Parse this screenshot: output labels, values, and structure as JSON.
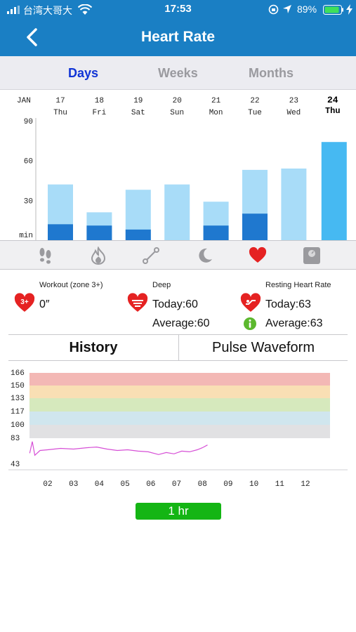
{
  "status_bar": {
    "carrier": "台湾大哥大",
    "time": "17:53",
    "battery": "89%"
  },
  "nav": {
    "title": "Heart Rate"
  },
  "tabs": [
    {
      "label": "Days",
      "active": true
    },
    {
      "label": "Weeks",
      "active": false
    },
    {
      "label": "Months",
      "active": false
    }
  ],
  "chart_data": {
    "type": "bar",
    "month_label": "JAN",
    "categories": [
      {
        "day": "17",
        "weekday": "Thu"
      },
      {
        "day": "18",
        "weekday": "Fri"
      },
      {
        "day": "19",
        "weekday": "Sat"
      },
      {
        "day": "20",
        "weekday": "Sun"
      },
      {
        "day": "21",
        "weekday": "Mon"
      },
      {
        "day": "22",
        "weekday": "Tue"
      },
      {
        "day": "23",
        "weekday": "Wed"
      },
      {
        "day": "24",
        "weekday": "Thu",
        "selected": true
      }
    ],
    "y_ticks": [
      "90",
      "60",
      "30",
      "min"
    ],
    "ylim": [
      0,
      90
    ],
    "series": [
      {
        "values": [
          42,
          21,
          38,
          42,
          29,
          53,
          54,
          74
        ],
        "color": "#a8dcf8"
      },
      {
        "values": [
          12,
          11,
          8,
          0,
          11,
          20,
          0,
          0
        ],
        "color": "#1f78cf"
      }
    ],
    "selected_color": "#46b9f2"
  },
  "icon_bar": {
    "icons": [
      "footprints-icon",
      "flame-icon",
      "distance-icon",
      "moon-icon",
      "heart-icon",
      "scale-icon"
    ],
    "active_color": "#e52222"
  },
  "summary": {
    "workout": {
      "label": "Workout (zone 3+)",
      "badge": "3+",
      "value": "0″"
    },
    "deep": {
      "label": "Deep",
      "today": "Today:60",
      "average": "Average:60"
    },
    "resting": {
      "label": "Resting Heart Rate",
      "today": "Today:63",
      "average": "Average:63"
    }
  },
  "segments": [
    {
      "label": "History",
      "active": true
    },
    {
      "label": "Pulse Waveform",
      "active": false
    }
  ],
  "history_chart": {
    "type": "line",
    "y_ticks": [
      166,
      150,
      133,
      117,
      100,
      83,
      43
    ],
    "x_ticks": [
      "02",
      "03",
      "04",
      "05",
      "06",
      "07",
      "08",
      "09",
      "10",
      "11",
      "12"
    ],
    "zones": [
      {
        "from": 150,
        "to": 166,
        "color": "#f3b8b5"
      },
      {
        "from": 133,
        "to": 150,
        "color": "#f9dfb4"
      },
      {
        "from": 117,
        "to": 133,
        "color": "#d6e9bd"
      },
      {
        "from": 100,
        "to": 117,
        "color": "#d0e6ee"
      },
      {
        "from": 83,
        "to": 100,
        "color": "#e1e1e3"
      }
    ],
    "line_color": "#d64fd6",
    "line": [
      [
        1.3,
        58
      ],
      [
        1.4,
        75
      ],
      [
        1.5,
        55
      ],
      [
        1.7,
        62
      ],
      [
        2.0,
        63
      ],
      [
        2.5,
        65
      ],
      [
        3.0,
        64
      ],
      [
        3.5,
        66
      ],
      [
        3.9,
        67
      ],
      [
        4.3,
        64
      ],
      [
        4.7,
        62
      ],
      [
        5.1,
        63
      ],
      [
        5.5,
        61
      ],
      [
        5.9,
        60
      ],
      [
        6.3,
        56
      ],
      [
        6.6,
        59
      ],
      [
        6.9,
        57
      ],
      [
        7.2,
        61
      ],
      [
        7.5,
        60
      ],
      [
        7.8,
        63
      ],
      [
        8.0,
        66
      ],
      [
        8.2,
        70
      ]
    ]
  },
  "range_button": {
    "label": "1 hr"
  }
}
